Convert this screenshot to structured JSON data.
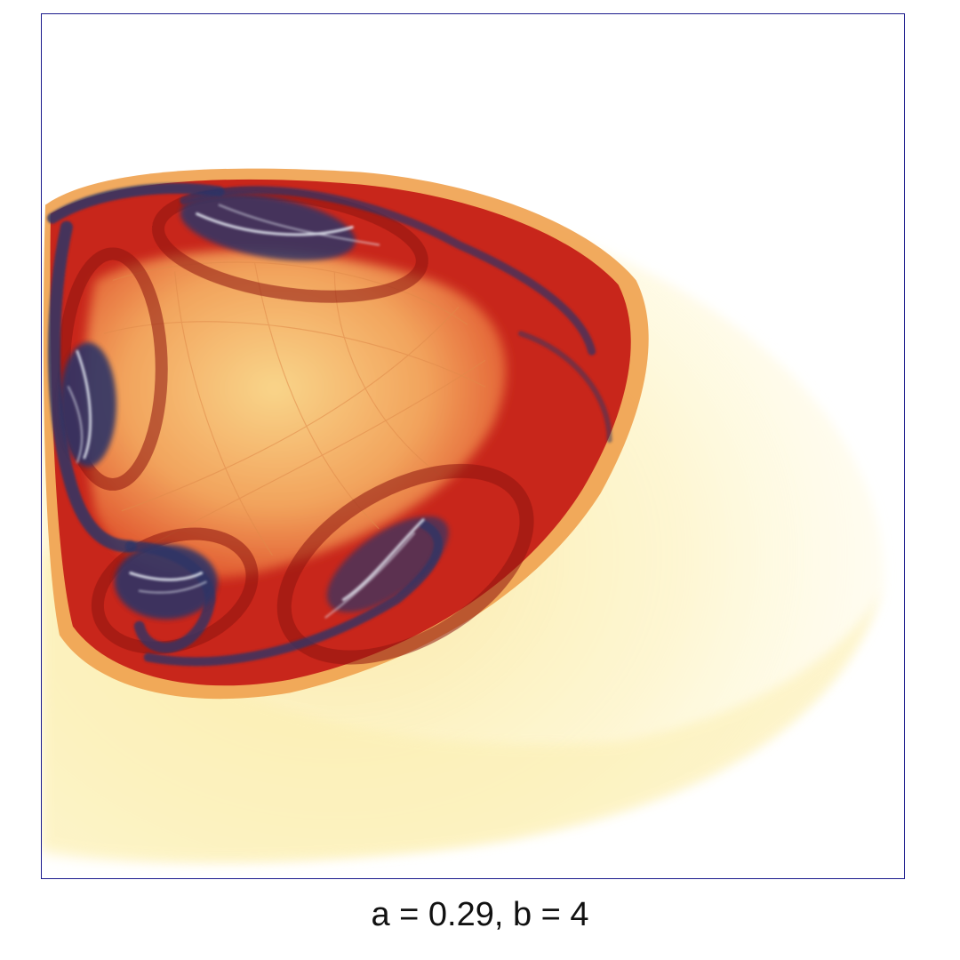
{
  "figure": {
    "caption": "a = 0.29, b = 4",
    "palette": {
      "frame": "#1a1a8c",
      "halo": "#fdf3b0",
      "light_orange": "#f5b866",
      "deep_red": "#c41d16",
      "navy": "#2e3566",
      "highlight": "#e8eef8"
    }
  }
}
